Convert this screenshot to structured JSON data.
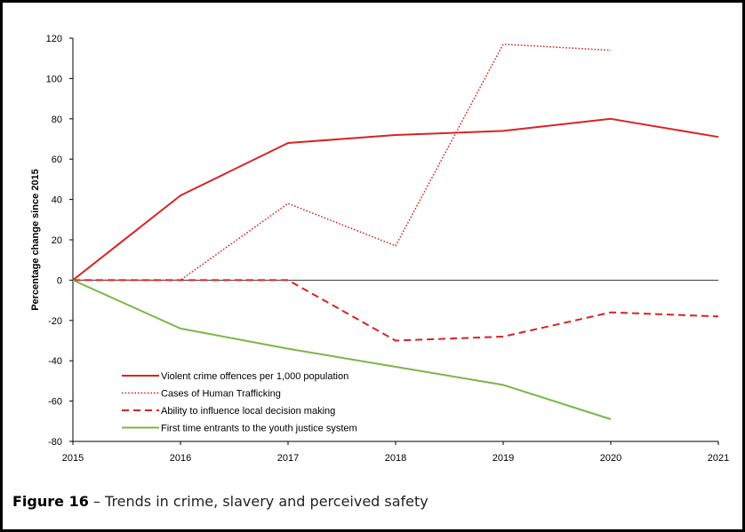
{
  "caption": {
    "label": "Figure 16",
    "text": " – Trends in crime, slavery and perceived safety"
  },
  "chart_data": {
    "type": "line",
    "title": "",
    "xlabel": "",
    "ylabel": "Percentage change since 2015",
    "x": [
      "2015",
      "2016",
      "2017",
      "2018",
      "2019",
      "2020",
      "2021"
    ],
    "ylim": [
      -80,
      120
    ],
    "yticks": [
      120,
      100,
      80,
      60,
      40,
      20,
      0,
      -20,
      -40,
      -60,
      -80
    ],
    "grid": false,
    "legend_position": "bottom-left",
    "series": [
      {
        "name": "Violent crime offences per 1,000 population",
        "style": "solid",
        "color": "#d92323",
        "values": [
          0,
          42,
          68,
          72,
          74,
          80,
          71
        ]
      },
      {
        "name": "Cases of Human Trafficking",
        "style": "dotted",
        "color": "#d92323",
        "values": [
          0,
          0,
          38,
          17,
          117,
          114,
          null
        ]
      },
      {
        "name": "Ability to influence local decision making",
        "style": "dashed",
        "color": "#d92323",
        "values": [
          0,
          0,
          0,
          -30,
          -28,
          -16,
          -18
        ]
      },
      {
        "name": "First time entrants to the youth justice system",
        "style": "solid",
        "color": "#7ab648",
        "values": [
          0,
          -24,
          -34,
          -43,
          -52,
          -69,
          null
        ]
      }
    ]
  }
}
